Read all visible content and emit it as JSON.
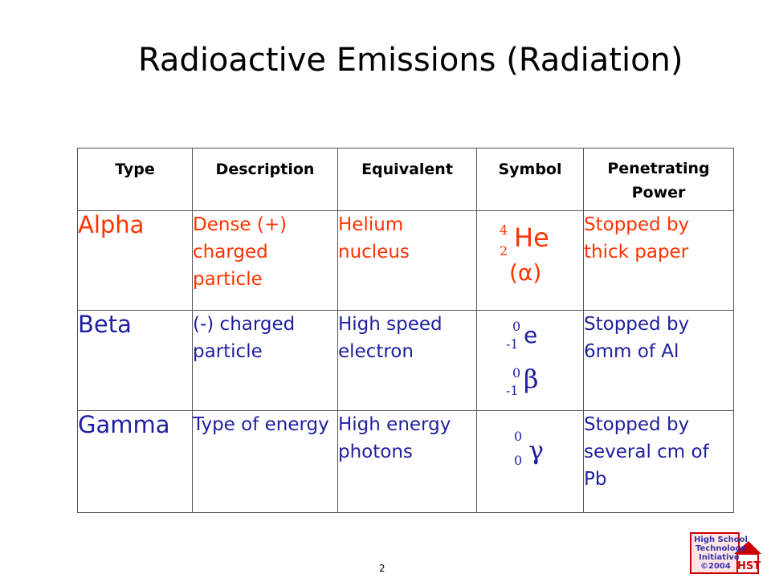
{
  "title": "Radioactive Emissions (Radiation)",
  "headers": [
    "Type",
    "Description",
    "Equivalent",
    "Symbol",
    "Penetrating Power"
  ],
  "rows": [
    {
      "type": "Alpha",
      "description": "Dense (+) charged particle",
      "equivalent": "Helium nucleus",
      "symbol": {
        "mass": "4",
        "atomic": "2",
        "element": "He",
        "alt": "(α)"
      },
      "power": "Stopped by thick paper",
      "color": "#ff3300"
    },
    {
      "type": "Beta",
      "description": "(-) charged particle",
      "equivalent": "High speed electron",
      "symbol": {
        "mass1": "0",
        "atomic1": "-1",
        "element1": "e",
        "mass2": "0",
        "atomic2": "-1",
        "element2": "β"
      },
      "power": "Stopped by 6mm of Al",
      "color": "#1f1f9f"
    },
    {
      "type": "Gamma",
      "description": "Type of energy",
      "equivalent": "High energy photons",
      "symbol": {
        "mass": "0",
        "atomic": "0",
        "element": "γ"
      },
      "power": "Stopped by several cm of Pb",
      "color": "#1f1f9f"
    }
  ],
  "page_number": "2",
  "logo": {
    "line1": "High School",
    "line2": "Technology",
    "line3": "Initiative",
    "line4": "©2004",
    "mark": "HSTi"
  }
}
